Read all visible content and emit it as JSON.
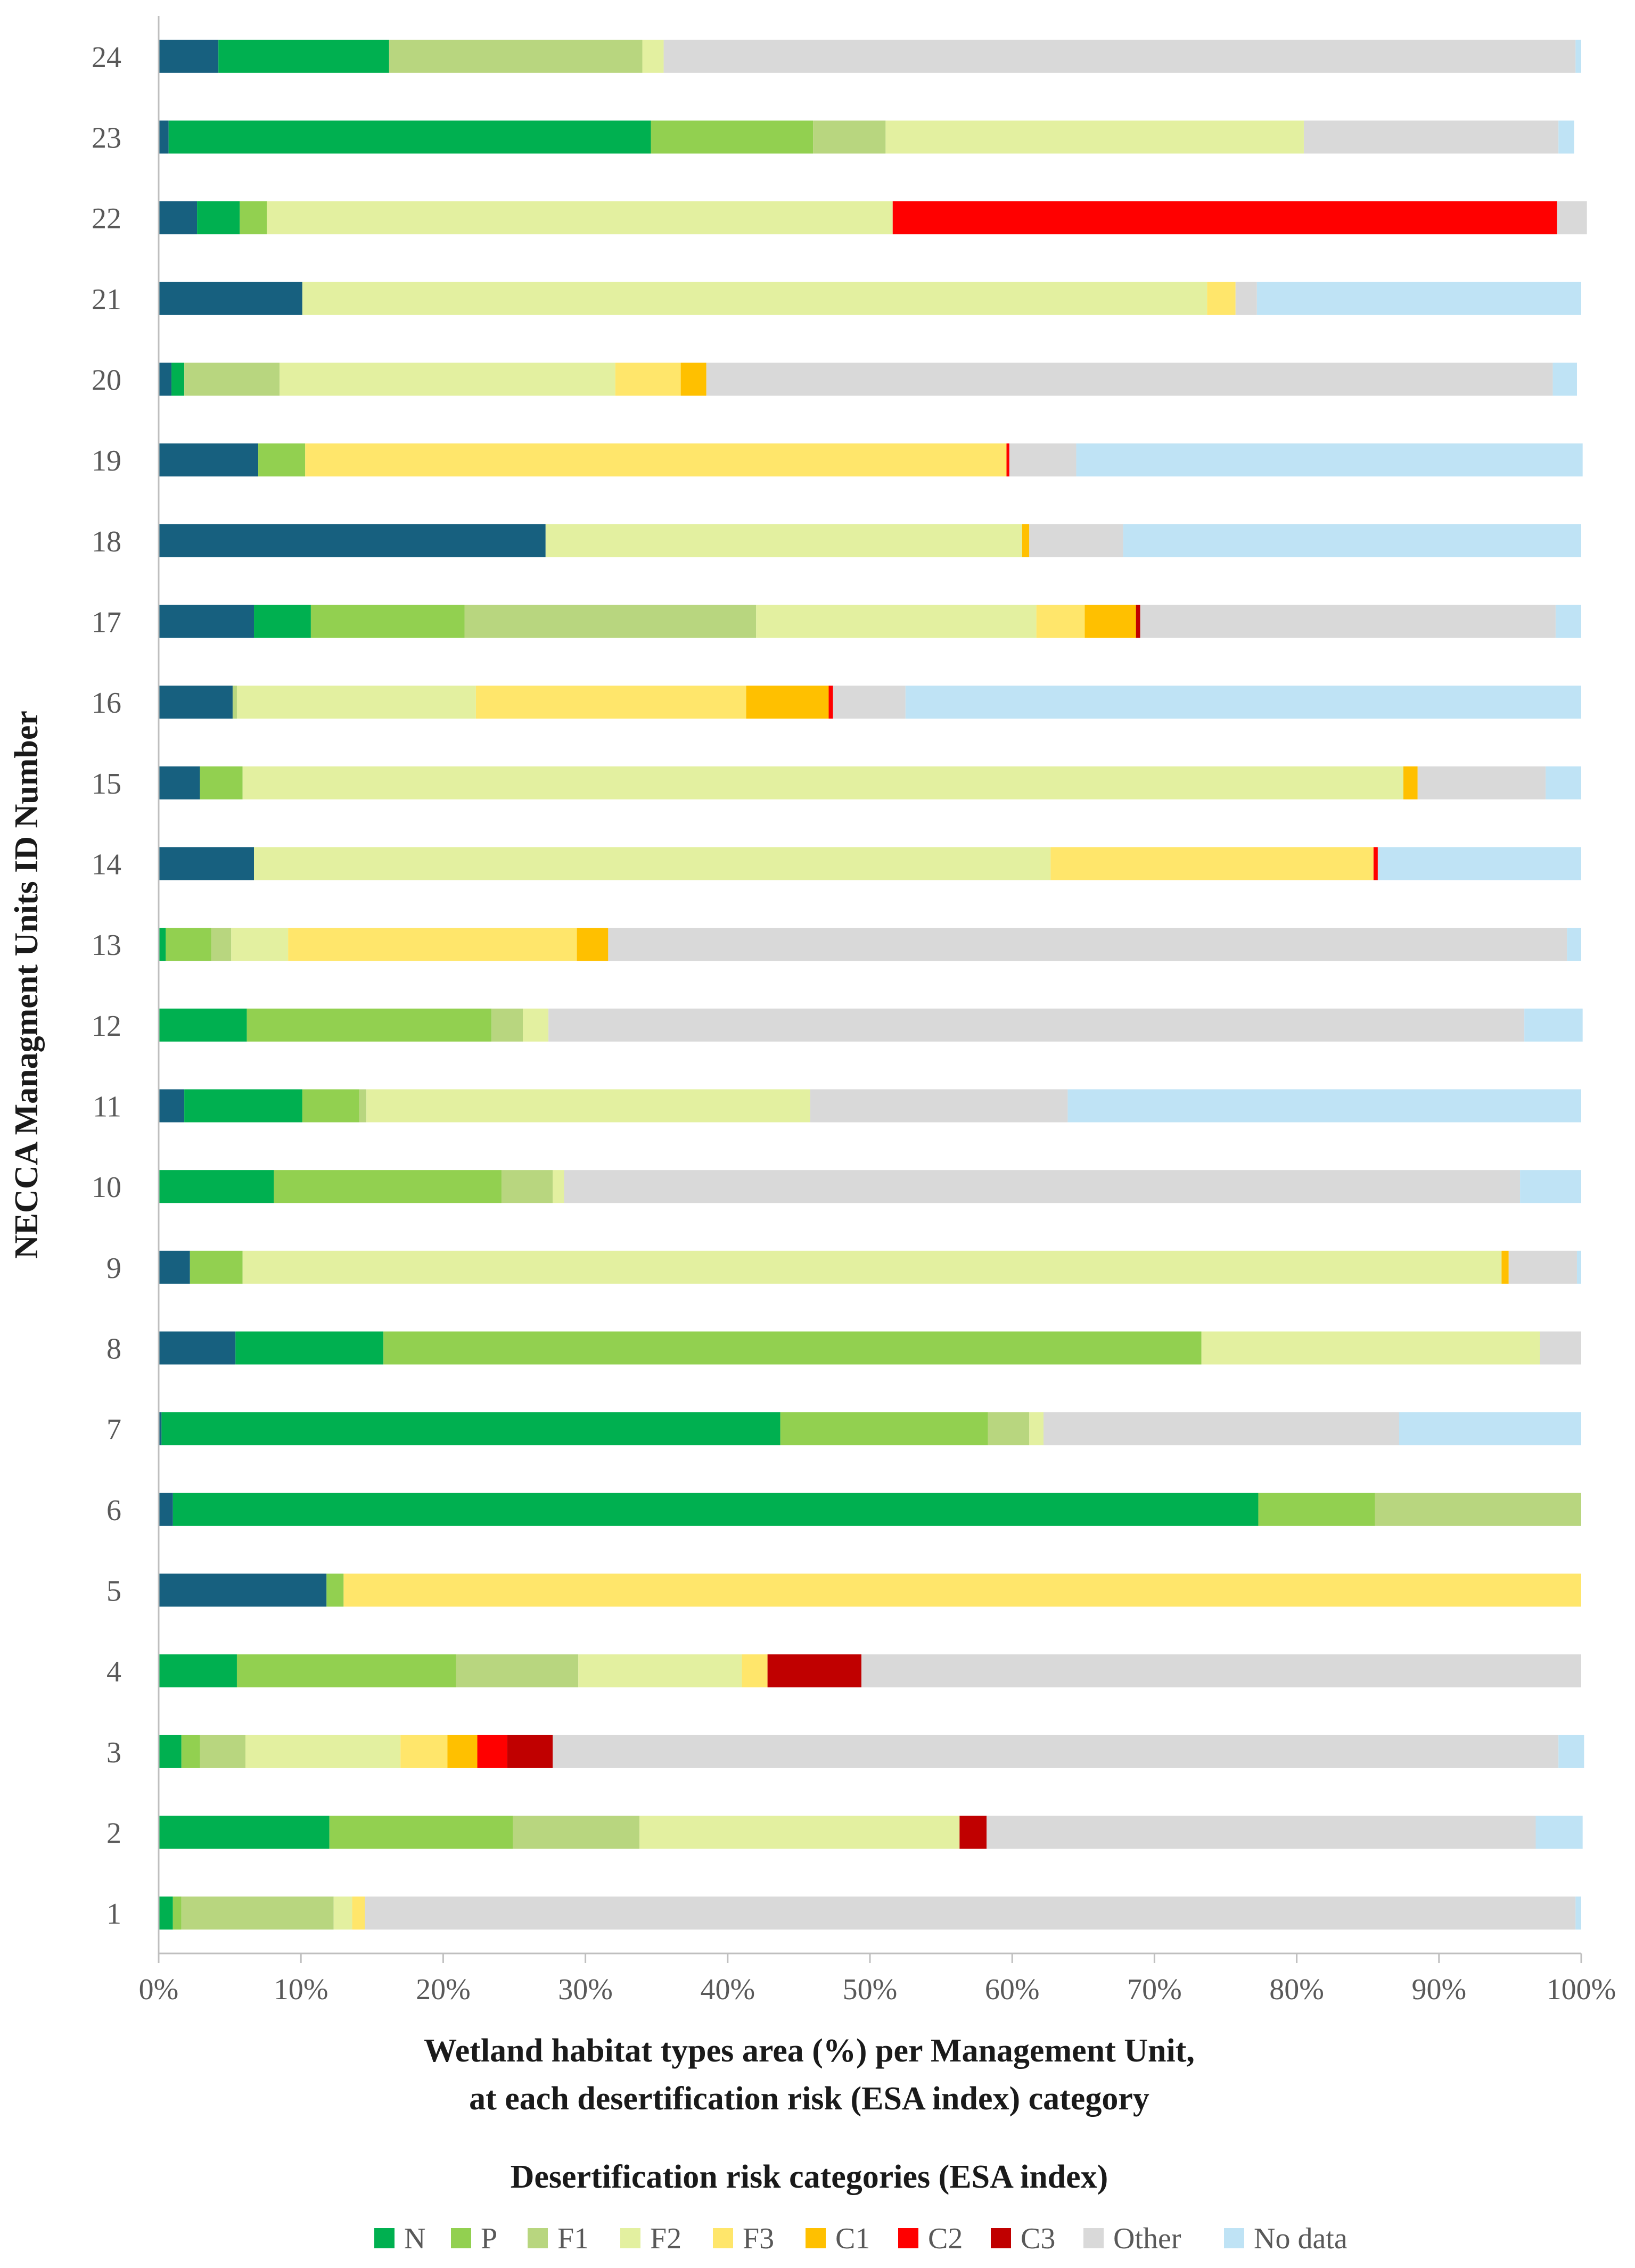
{
  "chart_data": {
    "type": "bar",
    "orientation": "horizontal",
    "stacked": "percent",
    "xlabel": [
      "Wetland habitat types area (%) per Management Unit,",
      "at each desertification risk (ESA index) category"
    ],
    "ylabel": "NECCA Managment Units ID Number",
    "x_tick_labels": [
      "0%",
      "10%",
      "20%",
      "30%",
      "40%",
      "50%",
      "60%",
      "70%",
      "80%",
      "90%",
      "100%"
    ],
    "xlim": [
      0,
      100
    ],
    "grid": false,
    "legend_title": "Desertification risk categories (ESA index)",
    "legend_position": "bottom",
    "categories": [
      "1",
      "2",
      "3",
      "4",
      "5",
      "6",
      "7",
      "8",
      "9",
      "10",
      "11",
      "12",
      "13",
      "14",
      "15",
      "16",
      "17",
      "18",
      "19",
      "20",
      "21",
      "22",
      "23",
      "24"
    ],
    "series": [
      {
        "color": "#17607f",
        "values": [
          0,
          0,
          0,
          0,
          11.8,
          1,
          0.2,
          5.4,
          2.2,
          0,
          1.8,
          0,
          0,
          6.7,
          2.9,
          5.2,
          6.7,
          27.2,
          7,
          0.9,
          10.1,
          2.7,
          0.7,
          4.2
        ]
      },
      {
        "name": "N",
        "color": "#00b050",
        "values": [
          1,
          12,
          1.6,
          5.5,
          0,
          76.3,
          43.5,
          10.4,
          0,
          8.1,
          8.3,
          6.2,
          0.5,
          0,
          0,
          0,
          4,
          0,
          0,
          0.9,
          0,
          3,
          33.9,
          12
        ]
      },
      {
        "name": "P",
        "color": "#92d050",
        "values": [
          0.6,
          12.9,
          1.3,
          15.4,
          1.2,
          8.2,
          14.6,
          57.5,
          3.7,
          16,
          4,
          17.2,
          3.2,
          0,
          3,
          0,
          10.8,
          0,
          3.3,
          0,
          0,
          1.9,
          11.4,
          0
        ]
      },
      {
        "name": "F1",
        "color": "#b8d67f",
        "values": [
          10.7,
          8.9,
          3.2,
          8.6,
          0,
          14.5,
          2.9,
          0,
          0,
          3.6,
          0.5,
          2.2,
          1.4,
          0,
          0,
          0.3,
          20.5,
          0,
          0,
          6.7,
          0,
          0,
          5.1,
          17.8
        ]
      },
      {
        "name": "F2",
        "color": "#e3f0a0",
        "values": [
          1.3,
          22.5,
          10.9,
          11.5,
          0,
          0,
          1,
          23.8,
          88.5,
          0.8,
          31.2,
          1.8,
          4,
          56,
          81.6,
          16.8,
          19.7,
          33.5,
          0,
          23.6,
          63.6,
          44,
          29.4,
          1.5
        ]
      },
      {
        "name": "F3",
        "color": "#ffe66b",
        "values": [
          0.9,
          0,
          3.3,
          1.8,
          87,
          0,
          0,
          0,
          0,
          0,
          0,
          0,
          20.3,
          22.7,
          0,
          19,
          3.4,
          0,
          49.3,
          4.6,
          2,
          0,
          0,
          0
        ]
      },
      {
        "name": "C1",
        "color": "#ffc000",
        "values": [
          0,
          0,
          2.1,
          0,
          0,
          0,
          0,
          0,
          0.5,
          0,
          0,
          0,
          2.2,
          0,
          1,
          5.8,
          3.6,
          0.5,
          0,
          1.8,
          0,
          0,
          0,
          0
        ]
      },
      {
        "name": "C2",
        "color": "#ff0000",
        "values": [
          0,
          0,
          2.1,
          0,
          0,
          0,
          0,
          0,
          0,
          0,
          0,
          0,
          0,
          0.3,
          0,
          0.3,
          0,
          0,
          0.2,
          0,
          0,
          46.7,
          0,
          0
        ]
      },
      {
        "name": "C3",
        "color": "#c00000",
        "values": [
          0,
          1.9,
          3.2,
          6.6,
          0,
          0,
          0,
          0,
          0,
          0,
          0,
          0,
          0,
          0,
          0,
          0,
          0.3,
          0,
          0,
          0,
          0,
          0,
          0,
          0
        ]
      },
      {
        "name": "Other",
        "color": "#d9d9d9",
        "values": [
          85.1,
          38.6,
          70.7,
          50.6,
          0,
          0,
          25,
          2.9,
          4.8,
          67.2,
          18.1,
          68.6,
          67.4,
          0,
          9,
          5.1,
          29.2,
          6.6,
          4.7,
          59.5,
          1.5,
          2.1,
          17.9,
          64.1
        ]
      },
      {
        "name": "No data",
        "color": "#bfe3f5",
        "values": [
          0.4,
          3.3,
          1.8,
          0,
          0,
          0,
          12.8,
          0,
          0.3,
          4.3,
          36.1,
          4.1,
          1,
          14.3,
          2.5,
          47.5,
          1.8,
          32.2,
          35.6,
          1.7,
          22.8,
          0,
          1.1,
          0.4
        ]
      }
    ]
  }
}
